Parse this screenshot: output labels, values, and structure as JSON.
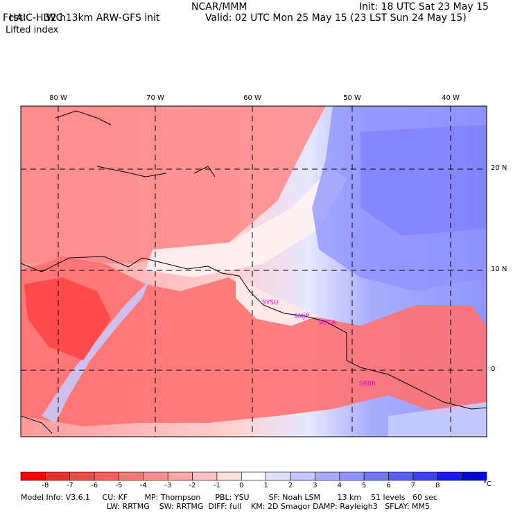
{
  "header": {
    "title_left": "HAIC-HIWC 13km ARW-GFS init",
    "org": "NCAR/MMM",
    "init": "Init: 18 UTC Sat 23 May 15",
    "fcst_label": "Fcst:",
    "fcst_value": "32 h",
    "valid": "Valid: 02 UTC Mon 25 May 15 (23 LST Sun 24 May 15)",
    "field": "Lifted index"
  },
  "map": {
    "lon_labels": [
      "80 W",
      "70 W",
      "60 W",
      "50 W",
      "40 W"
    ],
    "lat_labels": [
      "20 N",
      "10 N",
      "0"
    ],
    "stations": [
      "SYSU",
      "SMJP",
      "SOCA",
      "SBBR"
    ]
  },
  "colorbar": {
    "ticks": [
      "-8",
      "-7",
      "-6",
      "-5",
      "-4",
      "-3",
      "-2",
      "-1",
      "0",
      "1",
      "2",
      "3",
      "4",
      "5",
      "6",
      "7",
      "8"
    ],
    "unit": "°C",
    "colors": [
      "#ff0000",
      "#ff2a2a",
      "#ff4848",
      "#ff5f5f",
      "#ff7777",
      "#ff8f8f",
      "#ffa8a8",
      "#ffc3c3",
      "#ffdddd",
      "#ffffff",
      "#dde0ff",
      "#c3c6ff",
      "#a7acff",
      "#8e93ff",
      "#7277ff",
      "#585eff",
      "#3b41ff",
      "#1a1aff",
      "#0000ee"
    ]
  },
  "footer": {
    "line1": "Model Info: V3.6.1     CU: KF       MP: Thompson      PBL: YSU        SF: Noah LSM       13 km    51 levels   60 sec",
    "line2": "LW: RRTMG    SW: RRTMG  DIFF: full    KM: 2D Smagor DAMP: Rayleigh3   SFLAY: MM5"
  }
}
